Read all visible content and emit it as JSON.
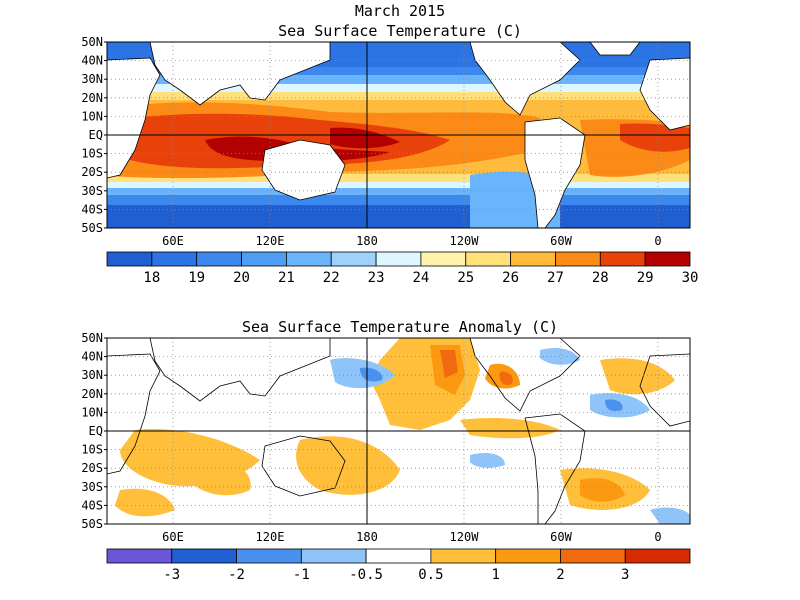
{
  "header": {
    "line1": "March 2015",
    "line2": "Sea Surface Temperature (C)"
  },
  "anomaly_title": "Sea Surface Temperature Anomaly (C)",
  "lat_labels": [
    "50N",
    "40N",
    "30N",
    "20N",
    "10N",
    "EQ",
    "10S",
    "20S",
    "30S",
    "40S",
    "50S"
  ],
  "lon_labels": [
    "60E",
    "120E",
    "180",
    "120W",
    "60W",
    "0"
  ],
  "sst_colorbar": {
    "colors": [
      "#1f5fd1",
      "#2c74e4",
      "#3d88ef",
      "#4f9ef6",
      "#6ab4fb",
      "#9fd2fb",
      "#ddf6ff",
      "#fff3ac",
      "#ffe07a",
      "#ffbb3d",
      "#fb8a17",
      "#e8420a",
      "#b30000"
    ],
    "labels": [
      "18",
      "19",
      "20",
      "21",
      "22",
      "23",
      "24",
      "25",
      "26",
      "27",
      "28",
      "29",
      "30"
    ]
  },
  "anomaly_colorbar": {
    "colors": [
      "#6d55d8",
      "#1f5fd1",
      "#4a90ee",
      "#8ec4f8",
      "#ffffff",
      "#ffbf3a",
      "#fb9a10",
      "#f26a10",
      "#d62b00"
    ],
    "labels": [
      "-3",
      "-2",
      "-1",
      "-0.5",
      "0.5",
      "1",
      "2",
      "3"
    ]
  }
}
